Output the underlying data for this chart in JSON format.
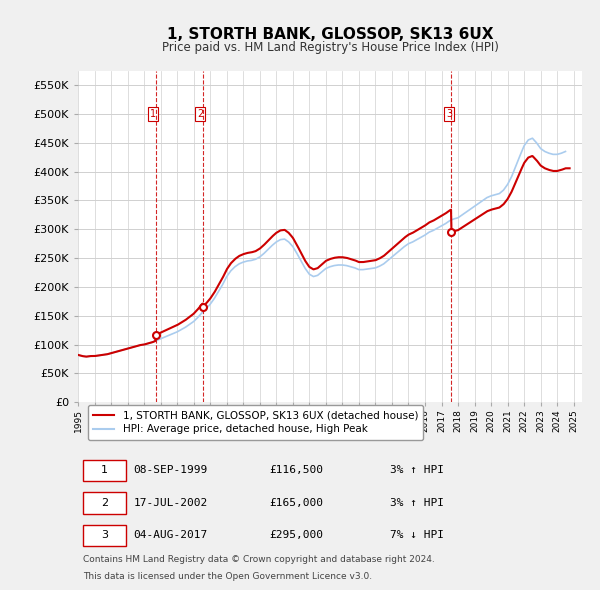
{
  "title": "1, STORTH BANK, GLOSSOP, SK13 6UX",
  "subtitle": "Price paid vs. HM Land Registry's House Price Index (HPI)",
  "ylabel_ticks": [
    0,
    50000,
    100000,
    150000,
    200000,
    250000,
    300000,
    350000,
    400000,
    450000,
    500000,
    550000
  ],
  "ylim": [
    0,
    575000
  ],
  "xlim_start": 1995.0,
  "xlim_end": 2025.5,
  "background_color": "#f0f0f0",
  "plot_bg_color": "#ffffff",
  "grid_color": "#d0d0d0",
  "red_line_color": "#cc0000",
  "blue_line_color": "#aaccee",
  "sale_line_color": "#cc0000",
  "transactions": [
    {
      "label": "1",
      "date": "08-SEP-1999",
      "price": 116500,
      "year": 1999.69,
      "hpi_pct": "3%",
      "direction": "↑"
    },
    {
      "label": "2",
      "date": "17-JUL-2002",
      "price": 165000,
      "year": 2002.54,
      "hpi_pct": "3%",
      "direction": "↑"
    },
    {
      "label": "3",
      "date": "04-AUG-2017",
      "price": 295000,
      "year": 2017.6,
      "hpi_pct": "7%",
      "direction": "↓"
    }
  ],
  "legend_red": "1, STORTH BANK, GLOSSOP, SK13 6UX (detached house)",
  "legend_blue": "HPI: Average price, detached house, High Peak",
  "footnote1": "Contains HM Land Registry data © Crown copyright and database right 2024.",
  "footnote2": "This data is licensed under the Open Government Licence v3.0.",
  "hpi_data_x": [
    1995.0,
    1995.25,
    1995.5,
    1995.75,
    1996.0,
    1996.25,
    1996.5,
    1996.75,
    1997.0,
    1997.25,
    1997.5,
    1997.75,
    1998.0,
    1998.25,
    1998.5,
    1998.75,
    1999.0,
    1999.25,
    1999.5,
    1999.75,
    2000.0,
    2000.25,
    2000.5,
    2000.75,
    2001.0,
    2001.25,
    2001.5,
    2001.75,
    2002.0,
    2002.25,
    2002.5,
    2002.75,
    2003.0,
    2003.25,
    2003.5,
    2003.75,
    2004.0,
    2004.25,
    2004.5,
    2004.75,
    2005.0,
    2005.25,
    2005.5,
    2005.75,
    2006.0,
    2006.25,
    2006.5,
    2006.75,
    2007.0,
    2007.25,
    2007.5,
    2007.75,
    2008.0,
    2008.25,
    2008.5,
    2008.75,
    2009.0,
    2009.25,
    2009.5,
    2009.75,
    2010.0,
    2010.25,
    2010.5,
    2010.75,
    2011.0,
    2011.25,
    2011.5,
    2011.75,
    2012.0,
    2012.25,
    2012.5,
    2012.75,
    2013.0,
    2013.25,
    2013.5,
    2013.75,
    2014.0,
    2014.25,
    2014.5,
    2014.75,
    2015.0,
    2015.25,
    2015.5,
    2015.75,
    2016.0,
    2016.25,
    2016.5,
    2016.75,
    2017.0,
    2017.25,
    2017.5,
    2017.75,
    2018.0,
    2018.25,
    2018.5,
    2018.75,
    2019.0,
    2019.25,
    2019.5,
    2019.75,
    2020.0,
    2020.25,
    2020.5,
    2020.75,
    2021.0,
    2021.25,
    2021.5,
    2021.75,
    2022.0,
    2022.25,
    2022.5,
    2022.75,
    2023.0,
    2023.25,
    2023.5,
    2023.75,
    2024.0,
    2024.25,
    2024.5
  ],
  "hpi_data_y": [
    82000,
    80000,
    79000,
    80000,
    80000,
    81000,
    82000,
    83000,
    85000,
    87000,
    89000,
    91000,
    93000,
    95000,
    97000,
    99000,
    100000,
    102000,
    104000,
    107000,
    110000,
    113000,
    116000,
    119000,
    122000,
    126000,
    130000,
    135000,
    140000,
    147000,
    155000,
    162000,
    170000,
    180000,
    192000,
    204000,
    218000,
    228000,
    235000,
    240000,
    243000,
    245000,
    246000,
    248000,
    252000,
    258000,
    265000,
    272000,
    278000,
    282000,
    283000,
    278000,
    270000,
    258000,
    245000,
    232000,
    222000,
    218000,
    220000,
    226000,
    232000,
    235000,
    237000,
    238000,
    238000,
    237000,
    235000,
    233000,
    230000,
    230000,
    231000,
    232000,
    233000,
    236000,
    240000,
    246000,
    252000,
    258000,
    264000,
    270000,
    275000,
    278000,
    282000,
    286000,
    290000,
    295000,
    298000,
    302000,
    306000,
    310000,
    315000,
    318000,
    320000,
    325000,
    330000,
    335000,
    340000,
    345000,
    350000,
    355000,
    358000,
    360000,
    362000,
    368000,
    378000,
    392000,
    410000,
    428000,
    445000,
    455000,
    458000,
    450000,
    440000,
    435000,
    432000,
    430000,
    430000,
    432000,
    435000
  ]
}
